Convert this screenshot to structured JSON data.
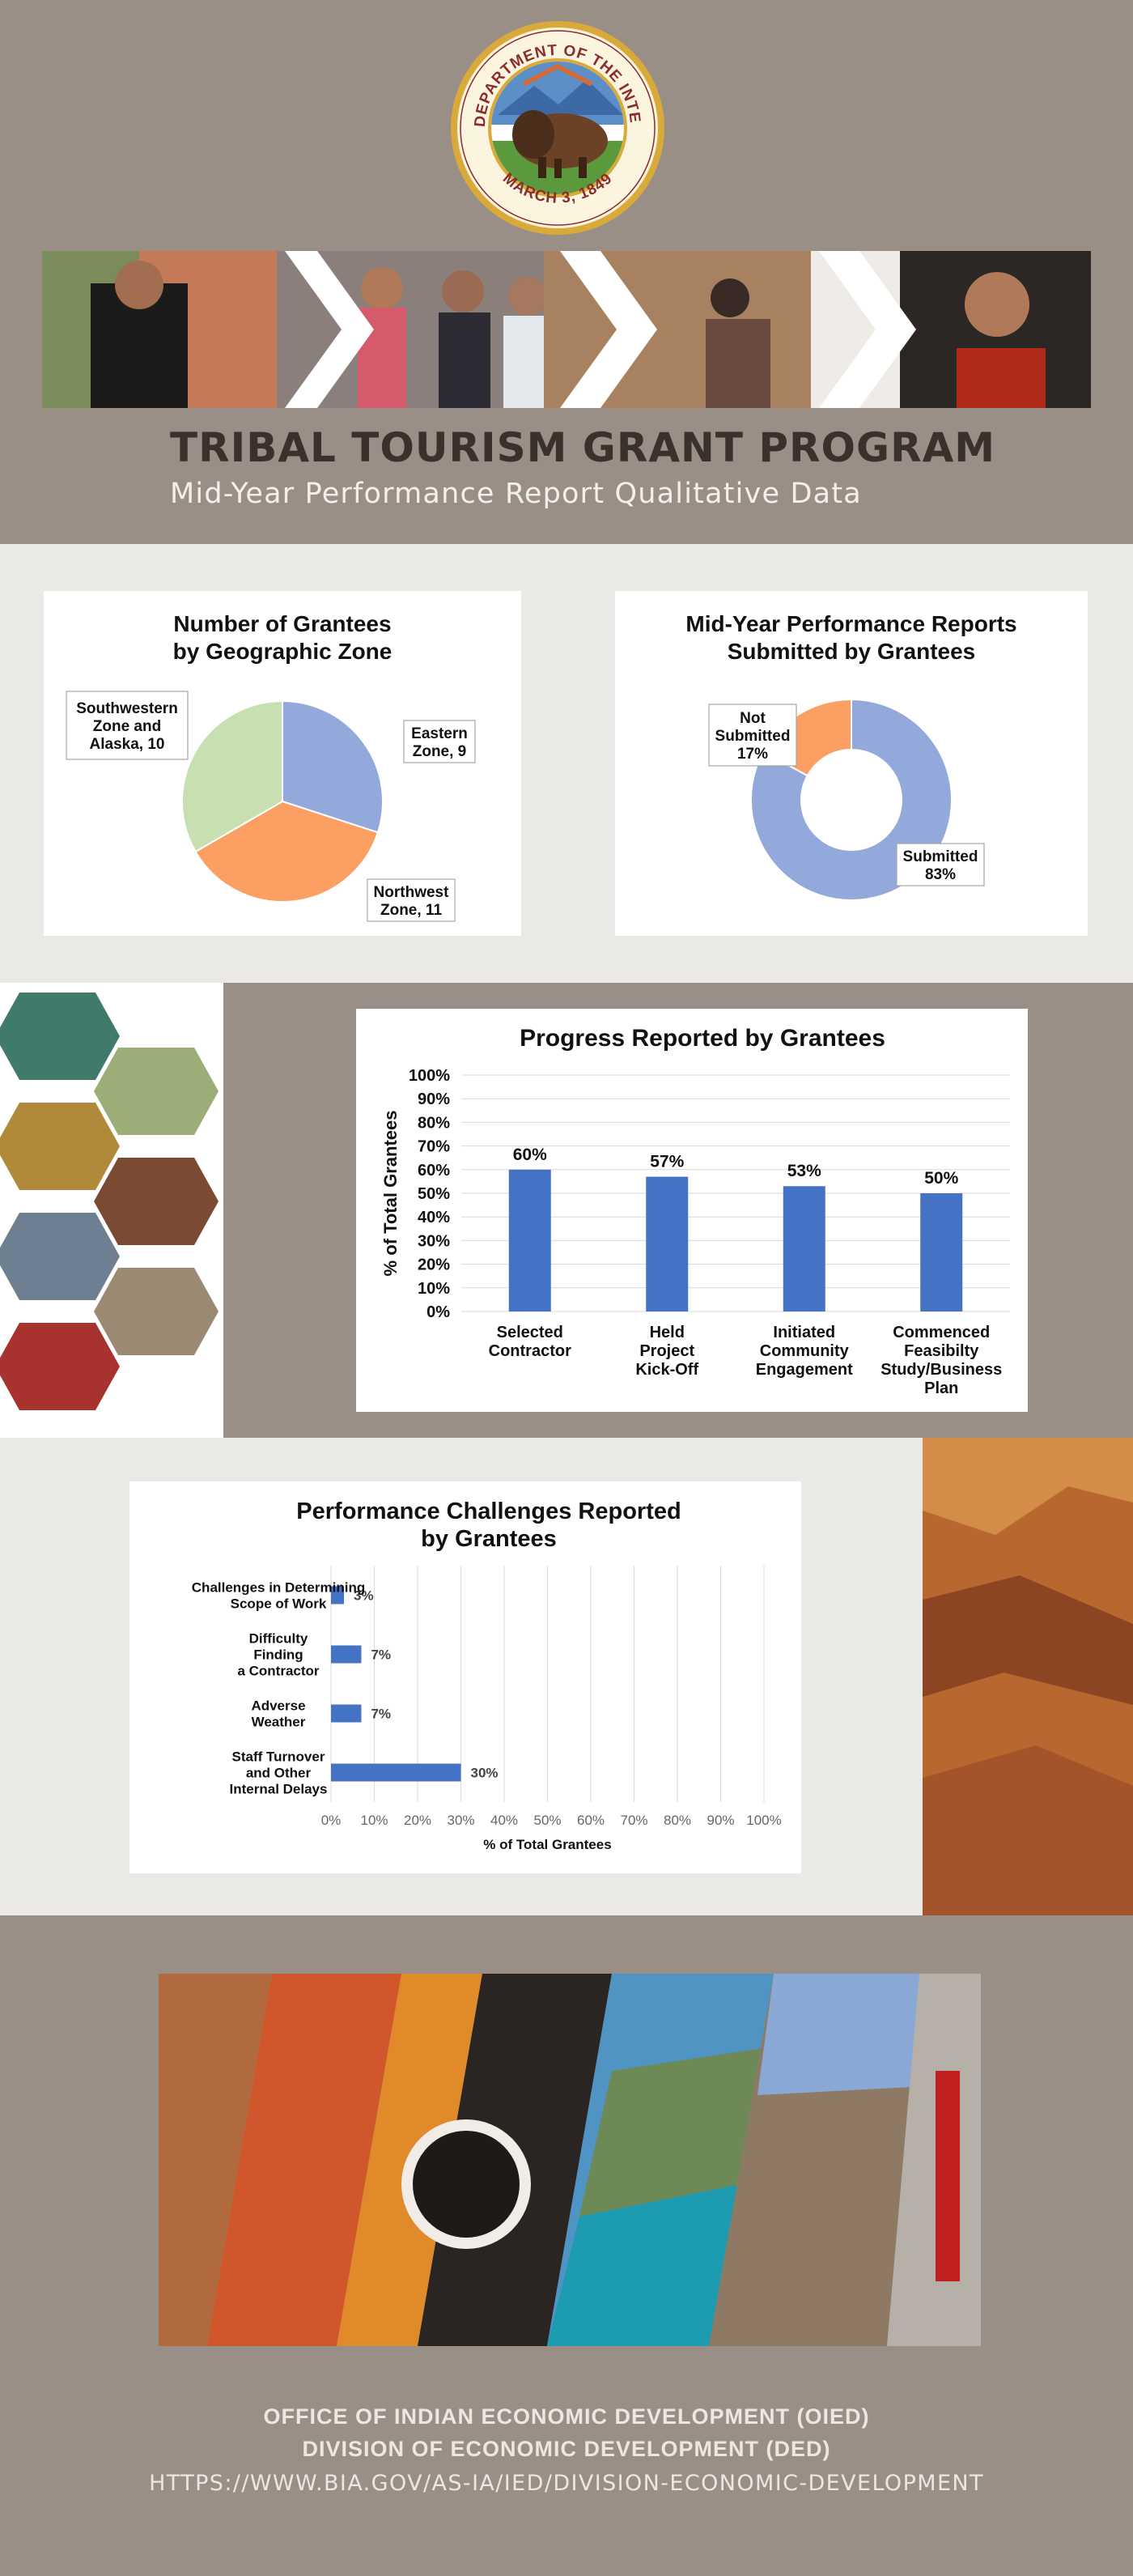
{
  "seal": {
    "top_text": "U.S. DEPARTMENT OF THE INTERIOR",
    "bottom_text": "MARCH 3, 1849"
  },
  "header": {
    "title": "TRIBAL TOURISM GRANT PROGRAM",
    "subtitle": "Mid-Year Performance Report Qualitative Data"
  },
  "colors": {
    "taupe": "#9a8f86",
    "light_bg": "#ebe9e5",
    "pie_blue": "#93a8db",
    "pie_orange": "#fb9f63",
    "pie_green": "#c8dfb2",
    "bar_blue": "#4472c4"
  },
  "chart_data": [
    {
      "type": "pie",
      "title": "Number of Grantees\nby Geographic Zone",
      "slices": [
        {
          "label": "Eastern\nZone, 9",
          "value": 9,
          "color": "#93a8db"
        },
        {
          "label": "Northwest\nZone, 11",
          "value": 11,
          "color": "#fb9f63"
        },
        {
          "label": "Southwestern\nZone and\nAlaska, 10",
          "value": 10,
          "color": "#c8dfb2"
        }
      ]
    },
    {
      "type": "pie",
      "subtype": "donut",
      "title": "Mid-Year Performance Reports\nSubmitted by Grantees",
      "slices": [
        {
          "label": "Submitted\n83%",
          "value": 83,
          "color": "#93a8db"
        },
        {
          "label": "Not\nSubmitted\n17%",
          "value": 17,
          "color": "#fb9f63"
        }
      ]
    },
    {
      "type": "bar",
      "title": "Progress Reported by Grantees",
      "ylabel": "% of Total Grantees",
      "xlabel": "",
      "categories": [
        "Selected\nContractor",
        "Held\nProject\nKick-Off",
        "Initiated\nCommunity\nEngagement",
        "Commenced\nFeasibilty\nStudy/Business\nPlan"
      ],
      "values": [
        60,
        57,
        53,
        50
      ],
      "data_labels": [
        "60%",
        "57%",
        "53%",
        "50%"
      ],
      "ylim": [
        0,
        100
      ],
      "yticks": [
        "0%",
        "10%",
        "20%",
        "30%",
        "40%",
        "50%",
        "60%",
        "70%",
        "80%",
        "90%",
        "100%"
      ],
      "grid": true,
      "color": "#4472c4"
    },
    {
      "type": "bar",
      "orientation": "horizontal",
      "title": "Performance Challenges Reported\nby Grantees",
      "xlabel": "% of Total Grantees",
      "ylabel": "",
      "categories": [
        "Challenges in Determining\nScope of Work",
        "Difficulty\nFinding\na Contractor",
        "Adverse\nWeather",
        "Staff Turnover\nand Other\nInternal Delays"
      ],
      "values": [
        3,
        7,
        7,
        30
      ],
      "data_labels": [
        "3%",
        "7%",
        "7%",
        "30%"
      ],
      "xlim": [
        0,
        100
      ],
      "xticks": [
        "0%",
        "10%",
        "20%",
        "30%",
        "40%",
        "50%",
        "60%",
        "70%",
        "80%",
        "90%",
        "100%"
      ],
      "grid": true,
      "color": "#4472c4"
    }
  ],
  "footer": {
    "line1": "OFFICE OF INDIAN ECONOMIC DEVELOPMENT (OIED)",
    "line2": "DIVISION OF ECONOMIC DEVELOPMENT (DED)",
    "line3": "HTTPS://WWW.BIA.GOV/AS-IA/IED/DIVISION-ECONOMIC-DEVELOPMENT"
  }
}
